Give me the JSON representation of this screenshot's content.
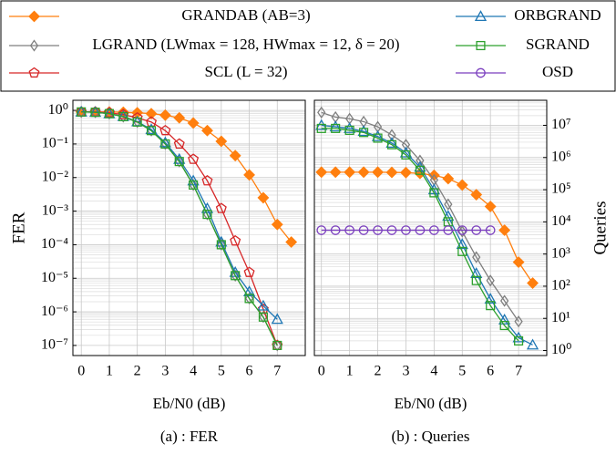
{
  "chart_data": [
    {
      "type": "line",
      "caption": "(a) : FER",
      "xlabel": "Eb/N0 (dB)",
      "ylabel": "FER",
      "log_y": true,
      "grid": true,
      "xlim": [
        -0.3,
        8
      ],
      "xticks": [
        0,
        1,
        2,
        3,
        4,
        5,
        6,
        7
      ],
      "ylim": [
        2,
        5e-08
      ],
      "yticks": [
        {
          "value": 1,
          "label": "10⁰"
        },
        {
          "value": 0.1,
          "label": "10⁻¹"
        },
        {
          "value": 0.01,
          "label": "10⁻²"
        },
        {
          "value": 0.001,
          "label": "10⁻³"
        },
        {
          "value": 0.0001,
          "label": "10⁻⁴"
        },
        {
          "value": 1e-05,
          "label": "10⁻⁵"
        },
        {
          "value": 1e-06,
          "label": "10⁻⁶"
        },
        {
          "value": 1e-07,
          "label": "10⁻⁷"
        }
      ],
      "series": [
        {
          "name": "GRANDAB (AB=3)",
          "color": "#ff7f0e",
          "marker": "diamond-filled",
          "x": [
            0,
            0.5,
            1,
            1.5,
            2,
            2.5,
            3,
            3.5,
            4,
            4.5,
            5,
            5.5,
            6,
            6.5,
            7,
            7.5
          ],
          "values": [
            0.9,
            0.9,
            0.9,
            0.88,
            0.85,
            0.8,
            0.72,
            0.6,
            0.42,
            0.25,
            0.12,
            0.045,
            0.012,
            0.0025,
            0.0004,
            0.00012
          ]
        },
        {
          "name": "LGRAND (LWmax = 128, HWmax = 12, δ = 20)",
          "color": "#7f7f7f",
          "marker": "diamond",
          "x": [
            0,
            0.5,
            1,
            1.5,
            2,
            2.5,
            3,
            3.5,
            4,
            4.5,
            5,
            5.5,
            6,
            6.5,
            7
          ],
          "values": [
            0.9,
            0.88,
            0.8,
            0.65,
            0.45,
            0.25,
            0.1,
            0.03,
            0.006,
            0.0008,
            0.0001,
            1.2e-05,
            2.5e-06,
            7e-07,
            1e-07
          ]
        },
        {
          "name": "SCL (L = 32)",
          "color": "#d62728",
          "marker": "pentagon",
          "x": [
            0,
            0.5,
            1,
            1.5,
            2,
            2.5,
            3,
            3.5,
            4,
            4.5,
            5,
            5.5,
            6,
            6.5,
            7
          ],
          "values": [
            0.9,
            0.9,
            0.85,
            0.75,
            0.6,
            0.45,
            0.25,
            0.1,
            0.035,
            0.008,
            0.0012,
            0.00013,
            1.5e-05,
            1.2e-06,
            1e-07
          ]
        },
        {
          "name": "ORBGRAND",
          "color": "#1f77b4",
          "marker": "triangle",
          "x": [
            0,
            0.5,
            1,
            1.5,
            2,
            2.5,
            3,
            3.5,
            4,
            4.5,
            5,
            5.5,
            6,
            6.5,
            7
          ],
          "values": [
            0.9,
            0.88,
            0.8,
            0.66,
            0.46,
            0.27,
            0.11,
            0.035,
            0.008,
            0.0012,
            0.00012,
            1.5e-05,
            4e-06,
            1.5e-06,
            6e-07
          ]
        },
        {
          "name": "SGRAND",
          "color": "#2ca02c",
          "marker": "square",
          "x": [
            0,
            0.5,
            1,
            1.5,
            2,
            2.5,
            3,
            3.5,
            4,
            4.5,
            5,
            5.5,
            6,
            6.5,
            7
          ],
          "values": [
            0.9,
            0.88,
            0.8,
            0.65,
            0.45,
            0.25,
            0.1,
            0.03,
            0.006,
            0.0008,
            0.0001,
            1.2e-05,
            2.5e-06,
            7e-07,
            1e-07
          ]
        }
      ]
    },
    {
      "type": "line",
      "caption": "(b) : Queries",
      "xlabel": "Eb/N0 (dB)",
      "ylabel": "Queries",
      "log_y": true,
      "grid": true,
      "y_axis_side": "right",
      "xlim": [
        -0.25,
        8
      ],
      "xticks": [
        0,
        1,
        2,
        3,
        4,
        5,
        6,
        7
      ],
      "ylim": [
        0.7,
        60000000
      ],
      "yticks": [
        {
          "value": 1,
          "label": "10⁰"
        },
        {
          "value": 10,
          "label": "10¹"
        },
        {
          "value": 100,
          "label": "10²"
        },
        {
          "value": 1000,
          "label": "10³"
        },
        {
          "value": 10000,
          "label": "10⁴"
        },
        {
          "value": 100000,
          "label": "10⁵"
        },
        {
          "value": 1000000,
          "label": "10⁶"
        },
        {
          "value": 10000000,
          "label": "10⁷"
        }
      ],
      "series": [
        {
          "name": "GRANDAB (AB=3)",
          "color": "#ff7f0e",
          "marker": "diamond-filled",
          "x": [
            0,
            0.5,
            1,
            1.5,
            2,
            2.5,
            3,
            3.5,
            4,
            4.5,
            5,
            5.5,
            6,
            6.5,
            7,
            7.5
          ],
          "values": [
            350000,
            350000,
            350000,
            350000,
            350000,
            345000,
            340000,
            320000,
            280000,
            220000,
            140000,
            70000,
            30000,
            5500,
            560,
            125
          ]
        },
        {
          "name": "LGRAND (LWmax = 128, HWmax = 12, δ = 20)",
          "color": "#7f7f7f",
          "marker": "diamond",
          "x": [
            0,
            0.5,
            1,
            1.5,
            2,
            2.5,
            3,
            3.5,
            4,
            4.5,
            5,
            5.5,
            6,
            6.5,
            7
          ],
          "values": [
            25000000,
            18000000,
            16000000,
            13000000,
            9000000,
            5000000,
            2500000,
            800000,
            200000,
            35000,
            5000,
            800,
            150,
            35,
            8
          ]
        },
        {
          "name": "ORBGRAND",
          "color": "#1f77b4",
          "marker": "triangle",
          "x": [
            0,
            0.5,
            1,
            1.5,
            2,
            2.5,
            3,
            3.5,
            4,
            4.5,
            5,
            5.5,
            6,
            6.5,
            7,
            7.5
          ],
          "values": [
            10000000,
            9000000,
            8000000,
            6500000,
            4500000,
            2800000,
            1400000,
            500000,
            100000,
            15000,
            2000,
            250,
            40,
            9,
            2.5,
            1.5
          ]
        },
        {
          "name": "SGRAND",
          "color": "#2ca02c",
          "marker": "square",
          "x": [
            0,
            0.5,
            1,
            1.5,
            2,
            2.5,
            3,
            3.5,
            4,
            4.5,
            5,
            5.5,
            6,
            6.5,
            7
          ],
          "values": [
            8000000,
            8000000,
            7000000,
            6000000,
            4000000,
            2500000,
            1200000,
            400000,
            80000,
            10000,
            1200,
            150,
            25,
            6,
            2
          ]
        },
        {
          "name": "OSD",
          "color": "#7b3fbf",
          "marker": "circle",
          "x": [
            0,
            0.5,
            1,
            1.5,
            2,
            2.5,
            3,
            3.5,
            4,
            4.5,
            5,
            5.5,
            6
          ],
          "values": [
            5500,
            5500,
            5500,
            5500,
            5500,
            5500,
            5500,
            5500,
            5500,
            5500,
            5500,
            5500,
            5500
          ]
        }
      ]
    }
  ]
}
